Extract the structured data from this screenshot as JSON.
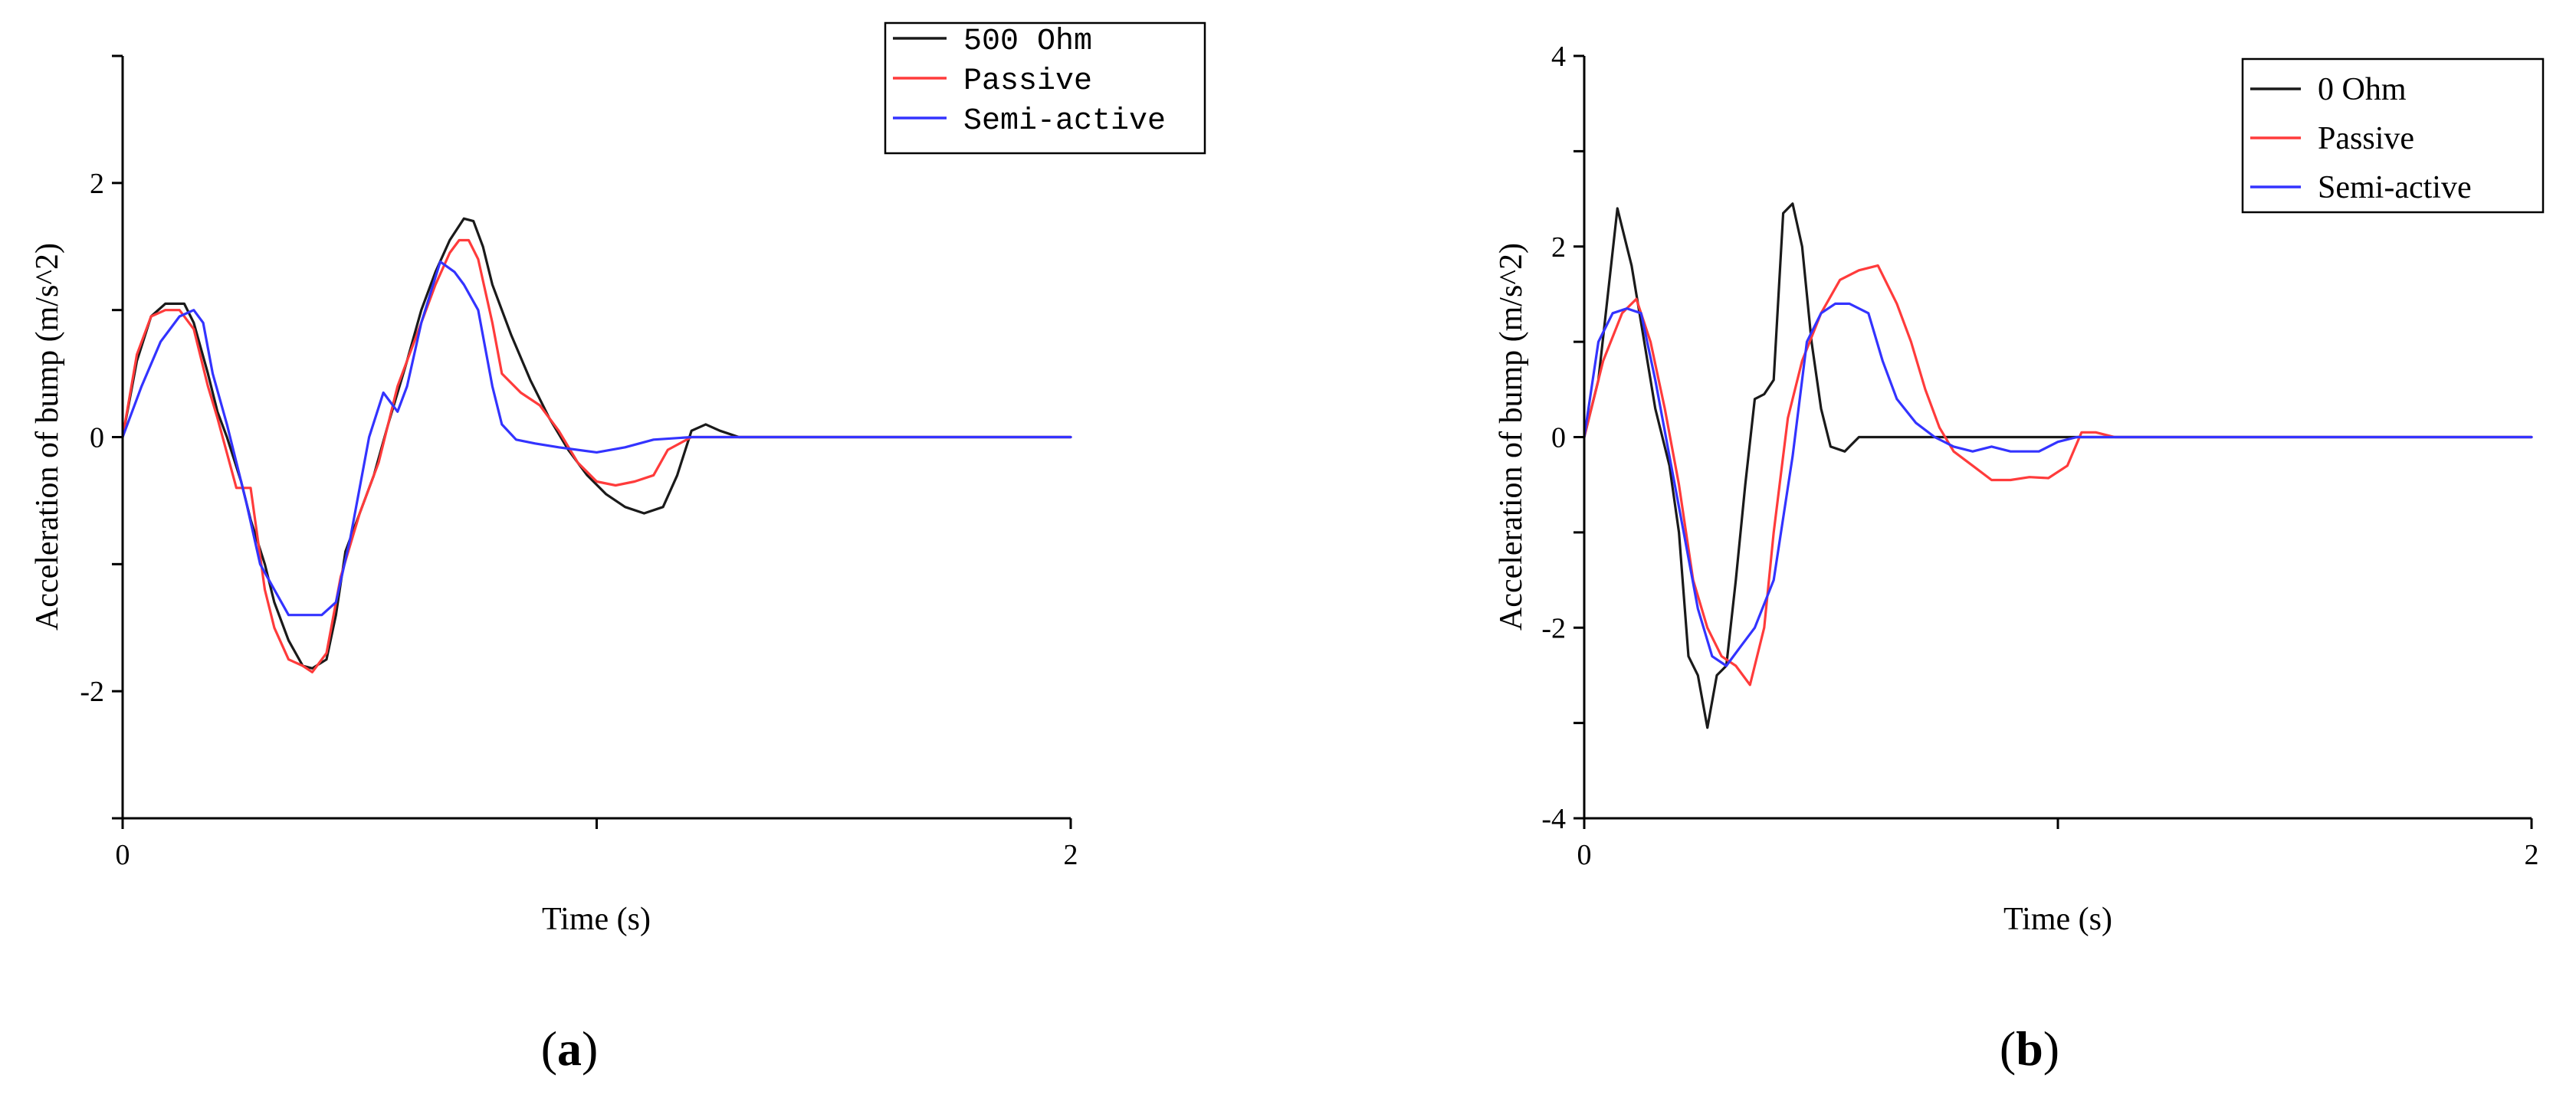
{
  "colors": {
    "black_series": "#1a1a1a",
    "passive": "#ff3b3b",
    "semi_active": "#3333ff"
  },
  "chart_data": [
    {
      "id": "a",
      "type": "line",
      "panel_label": "a",
      "xlabel": "Time (s)",
      "ylabel": "Acceleration of bump (m/s^2)",
      "xlim": [
        0,
        2
      ],
      "ylim": [
        -3,
        3
      ],
      "x_ticks": [
        0,
        1,
        2
      ],
      "x_tick_labels": [
        "0",
        "",
        "2"
      ],
      "y_ticks": [
        -3,
        -2,
        -1,
        0,
        1,
        2,
        3
      ],
      "y_tick_labels": [
        "",
        "-2",
        "",
        "0",
        "",
        "2",
        ""
      ],
      "legend_position": "top-right",
      "series": [
        {
          "name": "500 Ohm",
          "color": "#1a1a1a",
          "x": [
            0,
            0.03,
            0.06,
            0.09,
            0.13,
            0.15,
            0.18,
            0.2,
            0.22,
            0.25,
            0.27,
            0.3,
            0.32,
            0.35,
            0.38,
            0.4,
            0.43,
            0.45,
            0.47,
            0.5,
            0.53,
            0.56,
            0.6,
            0.63,
            0.66,
            0.69,
            0.72,
            0.74,
            0.76,
            0.78,
            0.8,
            0.82,
            0.86,
            0.9,
            0.94,
            0.98,
            1.02,
            1.06,
            1.1,
            1.14,
            1.17,
            1.2,
            1.23,
            1.26,
            1.3,
            1.4,
            1.6,
            1.8,
            2.0
          ],
          "y": [
            0,
            0.6,
            0.95,
            1.05,
            1.05,
            0.9,
            0.5,
            0.2,
            0.0,
            -0.35,
            -0.65,
            -1.0,
            -1.3,
            -1.6,
            -1.8,
            -1.82,
            -1.75,
            -1.4,
            -0.9,
            -0.6,
            -0.3,
            0.1,
            0.6,
            1.0,
            1.3,
            1.55,
            1.72,
            1.7,
            1.5,
            1.2,
            1.0,
            0.8,
            0.45,
            0.15,
            -0.1,
            -0.3,
            -0.45,
            -0.55,
            -0.6,
            -0.55,
            -0.3,
            0.05,
            0.1,
            0.05,
            0,
            0,
            0,
            0,
            0
          ]
        },
        {
          "name": "Passive",
          "color": "#ff3b3b",
          "x": [
            0,
            0.03,
            0.06,
            0.09,
            0.12,
            0.15,
            0.18,
            0.2,
            0.24,
            0.27,
            0.3,
            0.32,
            0.35,
            0.38,
            0.4,
            0.43,
            0.46,
            0.5,
            0.54,
            0.58,
            0.62,
            0.66,
            0.69,
            0.71,
            0.73,
            0.75,
            0.78,
            0.8,
            0.84,
            0.88,
            0.92,
            0.96,
            1.0,
            1.04,
            1.08,
            1.12,
            1.15,
            1.2,
            1.3,
            1.6,
            2.0
          ],
          "y": [
            0,
            0.65,
            0.95,
            1.0,
            1.0,
            0.85,
            0.4,
            0.15,
            -0.4,
            -0.4,
            -1.2,
            -1.5,
            -1.75,
            -1.8,
            -1.85,
            -1.7,
            -1.1,
            -0.6,
            -0.2,
            0.4,
            0.8,
            1.2,
            1.45,
            1.55,
            1.55,
            1.4,
            0.9,
            0.5,
            0.35,
            0.25,
            0.05,
            -0.2,
            -0.35,
            -0.38,
            -0.35,
            -0.3,
            -0.1,
            0,
            0,
            0,
            0
          ]
        },
        {
          "name": "Semi-active",
          "color": "#3333ff",
          "x": [
            0,
            0.04,
            0.08,
            0.12,
            0.15,
            0.17,
            0.19,
            0.22,
            0.26,
            0.29,
            0.32,
            0.35,
            0.38,
            0.42,
            0.45,
            0.48,
            0.52,
            0.55,
            0.58,
            0.6,
            0.63,
            0.67,
            0.7,
            0.72,
            0.75,
            0.78,
            0.8,
            0.83,
            0.87,
            0.92,
            1.0,
            1.06,
            1.12,
            1.2,
            1.3,
            1.6,
            2.0
          ],
          "y": [
            0,
            0.4,
            0.75,
            0.95,
            1.0,
            0.9,
            0.5,
            0.1,
            -0.5,
            -1.0,
            -1.2,
            -1.4,
            -1.4,
            -1.4,
            -1.3,
            -0.8,
            0.0,
            0.35,
            0.2,
            0.4,
            0.9,
            1.38,
            1.3,
            1.2,
            1.0,
            0.4,
            0.1,
            -0.02,
            -0.05,
            -0.08,
            -0.12,
            -0.08,
            -0.02,
            0,
            0,
            0,
            0
          ]
        }
      ]
    },
    {
      "id": "b",
      "type": "line",
      "panel_label": "b",
      "xlabel": "Time (s)",
      "ylabel": "Acceleration of bump (m/s^2)",
      "xlim": [
        0,
        2
      ],
      "ylim": [
        -4,
        4
      ],
      "x_ticks": [
        0,
        1,
        2
      ],
      "x_tick_labels": [
        "0",
        "",
        "2"
      ],
      "y_ticks": [
        -4,
        -3,
        -2,
        -1,
        0,
        1,
        2,
        3,
        4
      ],
      "y_tick_labels": [
        "-4",
        "",
        "-2",
        "",
        "0",
        "",
        "2",
        "",
        "4"
      ],
      "legend_position": "top-right",
      "series": [
        {
          "name": "0 Ohm",
          "color": "#1a1a1a",
          "x": [
            0,
            0.03,
            0.05,
            0.07,
            0.09,
            0.1,
            0.12,
            0.15,
            0.18,
            0.2,
            0.22,
            0.24,
            0.26,
            0.28,
            0.3,
            0.32,
            0.34,
            0.36,
            0.38,
            0.4,
            0.42,
            0.44,
            0.46,
            0.48,
            0.5,
            0.52,
            0.55,
            0.58,
            0.6,
            0.62,
            0.66,
            0.7,
            0.8,
            1.0,
            1.2,
            1.6,
            2.0
          ],
          "y": [
            0,
            0.6,
            1.5,
            2.4,
            2.0,
            1.8,
            1.2,
            0.3,
            -0.3,
            -1.0,
            -2.3,
            -2.5,
            -3.05,
            -2.5,
            -2.4,
            -1.5,
            -0.5,
            0.4,
            0.45,
            0.6,
            2.35,
            2.45,
            2.0,
            1.0,
            0.3,
            -0.1,
            -0.15,
            0.0,
            0.0,
            0.0,
            0.0,
            0.0,
            0,
            0,
            0,
            0,
            0
          ]
        },
        {
          "name": "Passive",
          "color": "#ff3b3b",
          "x": [
            0,
            0.04,
            0.08,
            0.11,
            0.14,
            0.17,
            0.2,
            0.23,
            0.26,
            0.29,
            0.32,
            0.35,
            0.38,
            0.4,
            0.43,
            0.46,
            0.5,
            0.54,
            0.58,
            0.62,
            0.66,
            0.69,
            0.72,
            0.75,
            0.78,
            0.82,
            0.86,
            0.9,
            0.94,
            0.98,
            1.02,
            1.05,
            1.08,
            1.12,
            1.2,
            1.6,
            2.0
          ],
          "y": [
            0,
            0.8,
            1.3,
            1.45,
            1.0,
            0.3,
            -0.5,
            -1.5,
            -2.0,
            -2.3,
            -2.4,
            -2.6,
            -2.0,
            -1.0,
            0.2,
            0.8,
            1.3,
            1.65,
            1.75,
            1.8,
            1.4,
            1.0,
            0.5,
            0.1,
            -0.15,
            -0.3,
            -0.45,
            -0.45,
            -0.42,
            -0.43,
            -0.3,
            0.05,
            0.05,
            0,
            0,
            0,
            0
          ]
        },
        {
          "name": "Semi-active",
          "color": "#3333ff",
          "x": [
            0,
            0.03,
            0.06,
            0.09,
            0.12,
            0.15,
            0.18,
            0.21,
            0.24,
            0.27,
            0.3,
            0.33,
            0.36,
            0.4,
            0.44,
            0.47,
            0.5,
            0.53,
            0.56,
            0.6,
            0.63,
            0.66,
            0.7,
            0.74,
            0.78,
            0.82,
            0.86,
            0.9,
            0.96,
            1.0,
            1.04,
            1.1,
            1.2,
            1.6,
            2.0
          ],
          "y": [
            0,
            1.0,
            1.3,
            1.35,
            1.3,
            0.6,
            -0.2,
            -1.0,
            -1.8,
            -2.3,
            -2.4,
            -2.2,
            -2.0,
            -1.5,
            -0.2,
            1.0,
            1.3,
            1.4,
            1.4,
            1.3,
            0.8,
            0.4,
            0.15,
            0.0,
            -0.1,
            -0.15,
            -0.1,
            -0.15,
            -0.15,
            -0.05,
            0,
            0,
            0,
            0,
            0
          ]
        }
      ]
    }
  ]
}
